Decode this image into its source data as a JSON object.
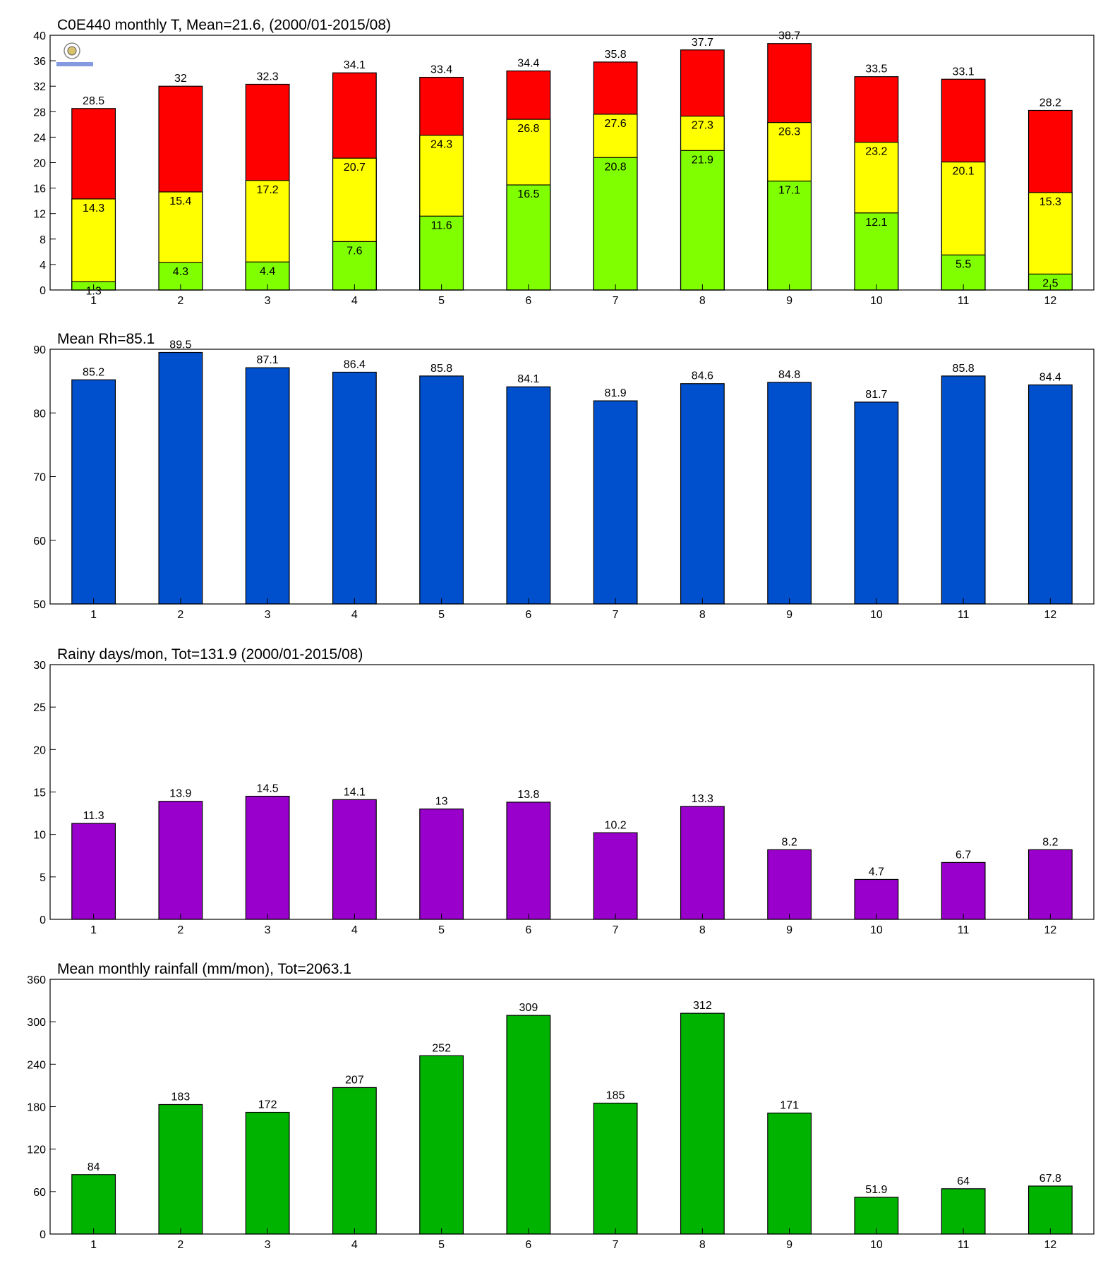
{
  "chart_data": [
    {
      "type": "overlay-bar",
      "title": "C0E440 monthly T, Mean=21.6, (2000/01-2015/08)",
      "categories": [
        "1",
        "2",
        "3",
        "4",
        "5",
        "6",
        "7",
        "8",
        "9",
        "10",
        "11",
        "12"
      ],
      "series": [
        {
          "color": "#ff0000",
          "values": [
            28.5,
            32,
            32.3,
            34.1,
            33.4,
            34.4,
            35.8,
            37.7,
            38.7,
            33.5,
            33.1,
            28.2
          ]
        },
        {
          "color": "#ffff00",
          "values": [
            14.3,
            15.4,
            17.2,
            20.7,
            24.3,
            26.8,
            27.6,
            27.3,
            26.3,
            23.2,
            20.1,
            15.3
          ]
        },
        {
          "color": "#80ff00",
          "values": [
            1.3,
            4.3,
            4.4,
            7.6,
            11.6,
            16.5,
            20.8,
            21.9,
            17.1,
            12.1,
            5.5,
            2.5
          ]
        }
      ],
      "ylim": [
        0,
        40
      ],
      "yticks": [
        0,
        4,
        8,
        12,
        16,
        20,
        24,
        28,
        32,
        36,
        40
      ]
    },
    {
      "type": "bar",
      "title": "Mean Rh=85.1",
      "categories": [
        "1",
        "2",
        "3",
        "4",
        "5",
        "6",
        "7",
        "8",
        "9",
        "10",
        "11",
        "12"
      ],
      "values": [
        85.2,
        89.5,
        87.1,
        86.4,
        85.8,
        84.1,
        81.9,
        84.6,
        84.8,
        81.7,
        85.8,
        84.4
      ],
      "color": "#004fcc",
      "ylim": [
        50,
        90
      ],
      "yticks": [
        50,
        60,
        70,
        80,
        90
      ]
    },
    {
      "type": "bar",
      "title": "Rainy days/mon, Tot=131.9 (2000/01-2015/08)",
      "categories": [
        "1",
        "2",
        "3",
        "4",
        "5",
        "6",
        "7",
        "8",
        "9",
        "10",
        "11",
        "12"
      ],
      "values": [
        11.3,
        13.9,
        14.5,
        14.1,
        13,
        13.8,
        10.2,
        13.3,
        8.2,
        4.7,
        6.7,
        8.2
      ],
      "color": "#9900cc",
      "ylim": [
        0,
        30
      ],
      "yticks": [
        0,
        5,
        10,
        15,
        20,
        25,
        30
      ]
    },
    {
      "type": "bar",
      "title": "Mean monthly rainfall (mm/mon), Tot=2063.1",
      "categories": [
        "1",
        "2",
        "3",
        "4",
        "5",
        "6",
        "7",
        "8",
        "9",
        "10",
        "11",
        "12"
      ],
      "values": [
        84,
        183,
        172,
        207,
        252,
        309,
        185,
        312,
        171,
        51.9,
        64,
        67.8
      ],
      "color": "#00b300",
      "ylim": [
        0,
        360
      ],
      "yticks": [
        0,
        60,
        120,
        180,
        240,
        300,
        360
      ]
    }
  ]
}
